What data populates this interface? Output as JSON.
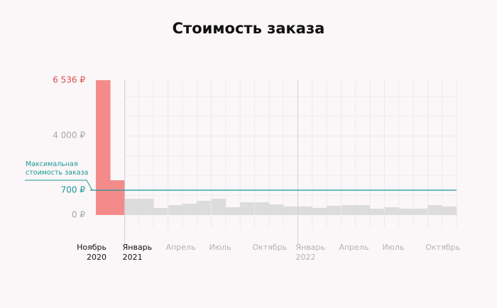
{
  "chart_data": {
    "type": "bar",
    "title": "Стоимость заказа",
    "categories": [
      "Ноябрь 2020",
      null,
      "Январь 2021",
      null,
      null,
      "Апрель",
      null,
      null,
      "Июль",
      null,
      null,
      "Октябрь",
      null,
      null,
      "Январь 2022",
      null,
      null,
      "Апрель",
      null,
      null,
      "Июль",
      null,
      null,
      "Октябрь",
      null
    ],
    "values": [
      6536,
      1300,
      460,
      460,
      200,
      280,
      320,
      400,
      460,
      220,
      360,
      360,
      300,
      240,
      240,
      200,
      260,
      280,
      280,
      180,
      220,
      180,
      180,
      280,
      240
    ],
    "colors": [
      "#f48b8b",
      "#f48b8b",
      "#dcdcdc",
      "#dcdcdc",
      "#dcdcdc",
      "#dcdcdc",
      "#dcdcdc",
      "#dcdcdc",
      "#dcdcdc",
      "#dcdcdc",
      "#dcdcdc",
      "#dcdcdc",
      "#dcdcdc",
      "#dcdcdc",
      "#dcdcdc",
      "#dcdcdc",
      "#dcdcdc",
      "#dcdcdc",
      "#dcdcdc",
      "#dcdcdc",
      "#dcdcdc",
      "#dcdcdc",
      "#dcdcdc",
      "#dcdcdc",
      "#dcdcdc"
    ],
    "ylim": [
      0,
      6536
    ],
    "yticks": [
      {
        "value": 0,
        "label": "0 ₽"
      },
      {
        "value": 700,
        "label": "700 ₽"
      },
      {
        "value": 4000,
        "label": "4 000 ₽"
      },
      {
        "value": 6536,
        "label": "6 536 ₽"
      }
    ],
    "threshold": {
      "value": 700,
      "label": "Максимальная стоимость заказа",
      "color": "#1a9a96"
    },
    "grid": true
  }
}
